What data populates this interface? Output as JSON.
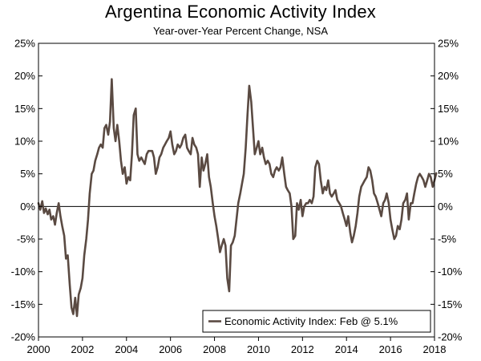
{
  "chart_data": {
    "type": "line",
    "title": "Argentina Economic Activity Index",
    "subtitle": "Year-over-Year Percent Change, NSA",
    "xlabel": "",
    "ylabel": "",
    "xlim": [
      2000,
      2018
    ],
    "ylim": [
      -20,
      25
    ],
    "x_ticks": [
      2000,
      2002,
      2004,
      2006,
      2008,
      2010,
      2012,
      2014,
      2016,
      2018
    ],
    "x_tick_labels": [
      "2000",
      "2002",
      "2004",
      "2006",
      "2008",
      "2010",
      "2012",
      "2014",
      "2016",
      "2018"
    ],
    "y_ticks": [
      -20,
      -15,
      -10,
      -5,
      0,
      5,
      10,
      15,
      20,
      25
    ],
    "y_tick_labels": [
      "-20%",
      "-15%",
      "-10%",
      "-5%",
      "0%",
      "5%",
      "10%",
      "15%",
      "20%",
      "25%"
    ],
    "zero_line": true,
    "legend": {
      "label": "Economic Activity Index: Feb @ 5.1%",
      "position": "bottom-right"
    },
    "series": [
      {
        "name": "Economic Activity Index",
        "color": "#5a4a42",
        "x": [
          2000.0,
          2000.08,
          2000.17,
          2000.25,
          2000.33,
          2000.42,
          2000.5,
          2000.58,
          2000.67,
          2000.75,
          2000.83,
          2000.92,
          2001.0,
          2001.08,
          2001.17,
          2001.25,
          2001.33,
          2001.42,
          2001.5,
          2001.58,
          2001.67,
          2001.75,
          2001.83,
          2001.92,
          2002.0,
          2002.08,
          2002.17,
          2002.25,
          2002.33,
          2002.42,
          2002.5,
          2002.58,
          2002.67,
          2002.75,
          2002.83,
          2002.92,
          2003.0,
          2003.08,
          2003.17,
          2003.25,
          2003.33,
          2003.42,
          2003.5,
          2003.58,
          2003.67,
          2003.75,
          2003.83,
          2003.92,
          2004.0,
          2004.08,
          2004.17,
          2004.25,
          2004.33,
          2004.42,
          2004.5,
          2004.58,
          2004.67,
          2004.75,
          2004.83,
          2004.92,
          2005.0,
          2005.08,
          2005.17,
          2005.25,
          2005.33,
          2005.42,
          2005.5,
          2005.58,
          2005.67,
          2005.75,
          2005.83,
          2005.92,
          2006.0,
          2006.08,
          2006.17,
          2006.25,
          2006.33,
          2006.42,
          2006.5,
          2006.58,
          2006.67,
          2006.75,
          2006.83,
          2006.92,
          2007.0,
          2007.08,
          2007.17,
          2007.25,
          2007.33,
          2007.42,
          2007.5,
          2007.58,
          2007.67,
          2007.75,
          2007.83,
          2007.92,
          2008.0,
          2008.08,
          2008.17,
          2008.25,
          2008.33,
          2008.42,
          2008.5,
          2008.58,
          2008.67,
          2008.75,
          2008.83,
          2008.92,
          2009.0,
          2009.08,
          2009.17,
          2009.25,
          2009.33,
          2009.42,
          2009.5,
          2009.58,
          2009.67,
          2009.75,
          2009.83,
          2009.92,
          2010.0,
          2010.08,
          2010.17,
          2010.25,
          2010.33,
          2010.42,
          2010.5,
          2010.58,
          2010.67,
          2010.75,
          2010.83,
          2010.92,
          2011.0,
          2011.08,
          2011.17,
          2011.25,
          2011.33,
          2011.42,
          2011.5,
          2011.58,
          2011.67,
          2011.75,
          2011.83,
          2011.92,
          2012.0,
          2012.08,
          2012.17,
          2012.25,
          2012.33,
          2012.42,
          2012.5,
          2012.58,
          2012.67,
          2012.75,
          2012.83,
          2012.92,
          2013.0,
          2013.08,
          2013.17,
          2013.25,
          2013.33,
          2013.42,
          2013.5,
          2013.58,
          2013.67,
          2013.75,
          2013.83,
          2013.92,
          2014.0,
          2014.08,
          2014.17,
          2014.25,
          2014.33,
          2014.42,
          2014.5,
          2014.58,
          2014.67,
          2014.75,
          2014.83,
          2014.92,
          2015.0,
          2015.08,
          2015.17,
          2015.25,
          2015.33,
          2015.42,
          2015.5,
          2015.58,
          2015.67,
          2015.75,
          2015.83,
          2015.92,
          2016.0,
          2016.08,
          2016.17,
          2016.25,
          2016.33,
          2016.42,
          2016.5,
          2016.58,
          2016.67,
          2016.75,
          2016.83,
          2016.92,
          2017.0,
          2017.08,
          2017.17,
          2017.25,
          2017.33,
          2017.42,
          2017.5,
          2017.58,
          2017.67,
          2017.75,
          2017.83,
          2017.92,
          2018.0,
          2018.08
        ],
        "values": [
          0.5,
          -0.5,
          0.8,
          -1.0,
          -0.3,
          -1.2,
          -0.5,
          -2.0,
          -1.5,
          -2.8,
          -1.0,
          0.5,
          -1.5,
          -3.0,
          -4.5,
          -8.0,
          -7.5,
          -12.0,
          -15.5,
          -16.5,
          -14.0,
          -16.8,
          -13.5,
          -12.5,
          -11.0,
          -7.5,
          -5.0,
          -2.0,
          2.0,
          5.0,
          5.5,
          7.0,
          8.0,
          9.0,
          9.5,
          9.0,
          12.0,
          12.5,
          11.0,
          13.0,
          19.5,
          12.0,
          10.0,
          12.5,
          10.0,
          7.0,
          5.0,
          6.0,
          3.5,
          4.5,
          4.0,
          8.0,
          14.0,
          15.0,
          8.0,
          7.0,
          7.5,
          7.0,
          6.5,
          8.0,
          8.5,
          8.5,
          8.5,
          7.5,
          5.0,
          6.0,
          7.5,
          8.0,
          9.0,
          9.5,
          10.0,
          10.5,
          11.5,
          9.5,
          8.0,
          8.5,
          9.5,
          9.0,
          9.5,
          10.5,
          11.0,
          9.0,
          8.5,
          8.0,
          10.5,
          9.5,
          9.0,
          8.0,
          3.0,
          7.5,
          5.5,
          6.5,
          8.0,
          4.5,
          3.0,
          0.5,
          -1.5,
          -3.0,
          -5.0,
          -7.0,
          -6.0,
          -5.0,
          -6.0,
          -11.0,
          -13.0,
          -6.0,
          -5.5,
          -4.5,
          -2.0,
          0.5,
          2.0,
          3.5,
          5.0,
          9.0,
          14.0,
          18.5,
          16.0,
          12.0,
          8.0,
          9.0,
          10.0,
          8.0,
          9.0,
          7.5,
          6.5,
          7.0,
          6.5,
          5.0,
          4.5,
          5.5,
          6.0,
          5.5,
          6.0,
          7.5,
          5.0,
          3.0,
          2.5,
          2.0,
          0.0,
          -5.0,
          -4.5,
          0.5,
          -0.5,
          1.0,
          -1.5,
          0.0,
          0.5,
          0.5,
          1.0,
          0.5,
          1.5,
          6.0,
          7.0,
          6.5,
          4.0,
          2.0,
          3.0,
          2.5,
          4.0,
          2.0,
          1.5,
          2.0,
          2.5,
          1.0,
          0.5,
          0.0,
          -1.0,
          -2.0,
          -3.0,
          -1.5,
          -4.0,
          -5.5,
          -4.5,
          -3.0,
          -1.0,
          1.5,
          3.0,
          3.5,
          4.0,
          4.5,
          6.0,
          5.5,
          4.0,
          2.0,
          1.5,
          0.5,
          -0.5,
          -1.5,
          0.5,
          1.0,
          2.0,
          0.5,
          -2.0,
          -3.5,
          -5.0,
          -4.5,
          -3.0,
          -3.5,
          -2.0,
          0.5,
          1.0,
          2.0,
          -2.0,
          0.5,
          0.5,
          2.0,
          3.5,
          4.5,
          5.0,
          4.5,
          4.0,
          3.0,
          4.0,
          5.0,
          4.5,
          3.0,
          4.0,
          5.1
        ]
      }
    ]
  }
}
